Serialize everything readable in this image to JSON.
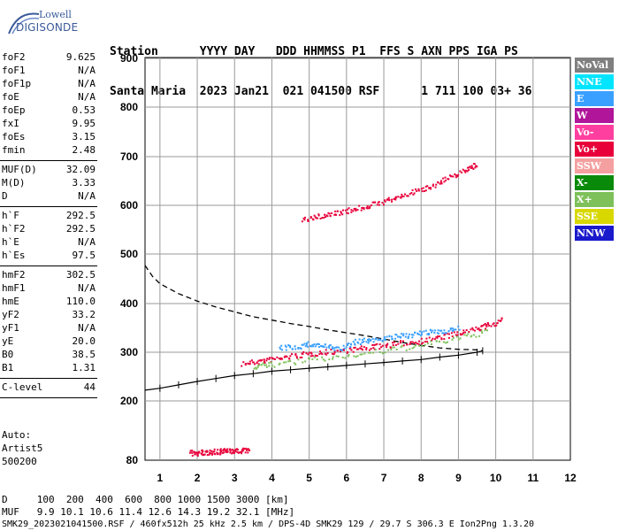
{
  "logo": {
    "line1": "Lowell",
    "line2": "DIGISONDE"
  },
  "header": {
    "line1": "Station      YYYY DAY   DDD HHMMSS P1  FFS S AXN PPS IGA PS",
    "line2": "Santa Maria  2023 Jan21  021 041500 RSF      1 711 100 03+ 36"
  },
  "params": [
    {
      "k": "foF2",
      "v": "9.625"
    },
    {
      "k": "foF1",
      "v": "N/A"
    },
    {
      "k": "foF1p",
      "v": "N/A"
    },
    {
      "k": "foE",
      "v": "N/A"
    },
    {
      "k": "foEp",
      "v": "0.53"
    },
    {
      "k": "fxI",
      "v": "9.95"
    },
    {
      "k": "foEs",
      "v": "3.15"
    },
    {
      "k": "fmin",
      "v": "2.48"
    },
    {
      "sep": true
    },
    {
      "k": "MUF(D)",
      "v": "32.09"
    },
    {
      "k": "M(D)",
      "v": "3.33"
    },
    {
      "k": "D",
      "v": "N/A"
    },
    {
      "sep": true
    },
    {
      "k": "h`F",
      "v": "292.5"
    },
    {
      "k": "h`F2",
      "v": "292.5"
    },
    {
      "k": "h`E",
      "v": "N/A"
    },
    {
      "k": "h`Es",
      "v": "97.5"
    },
    {
      "sep": true
    },
    {
      "k": "hmF2",
      "v": "302.5"
    },
    {
      "k": "hmF1",
      "v": "N/A"
    },
    {
      "k": "hmE",
      "v": "110.0"
    },
    {
      "k": "yF2",
      "v": "33.2"
    },
    {
      "k": "yF1",
      "v": "N/A"
    },
    {
      "k": "yE",
      "v": "20.0"
    },
    {
      "k": "B0",
      "v": "38.5"
    },
    {
      "k": "B1",
      "v": "1.31"
    },
    {
      "sep": true
    },
    {
      "k": "C-level",
      "v": "44"
    },
    {
      "sep": true
    }
  ],
  "auto": {
    "line1": "Auto:",
    "line2": "Artist5",
    "line3": "500200"
  },
  "legend": [
    {
      "label": "NoVal",
      "color": "#7f7f7f"
    },
    {
      "label": "NNE",
      "color": "#00e5ff"
    },
    {
      "label": "E",
      "color": "#3aa0ff"
    },
    {
      "label": "W",
      "color": "#b0159a"
    },
    {
      "label": "Vo-",
      "color": "#ff3fa0"
    },
    {
      "label": "Vo+",
      "color": "#e8003a"
    },
    {
      "label": "SSW",
      "color": "#f5a0a0"
    },
    {
      "label": "X-",
      "color": "#0a8a0a"
    },
    {
      "label": "X+",
      "color": "#7ec05a"
    },
    {
      "label": "SSE",
      "color": "#d8d800"
    },
    {
      "label": "NNW",
      "color": "#1a1acc"
    }
  ],
  "chart_data": {
    "type": "scatter",
    "xlim": [
      0.6,
      12.0
    ],
    "ylim": [
      80,
      900
    ],
    "x_ticks": [
      1,
      2,
      3,
      4,
      5,
      6,
      7,
      8,
      9,
      10,
      11,
      12
    ],
    "y_ticks": [
      80,
      200,
      300,
      400,
      500,
      600,
      700,
      800,
      900
    ],
    "grid": true,
    "series": [
      {
        "name": "F trace (virtual height)",
        "color": "#e8003a",
        "points": [
          [
            3.2,
            278
          ],
          [
            3.6,
            282
          ],
          [
            4.0,
            287
          ],
          [
            4.5,
            293
          ],
          [
            5.0,
            298
          ],
          [
            5.5,
            302
          ],
          [
            6.0,
            306
          ],
          [
            6.5,
            310
          ],
          [
            7.0,
            315
          ],
          [
            7.5,
            320
          ],
          [
            8.0,
            325
          ],
          [
            8.5,
            332
          ],
          [
            9.0,
            340
          ],
          [
            9.5,
            350
          ],
          [
            9.8,
            357
          ],
          [
            10.2,
            368
          ]
        ]
      },
      {
        "name": "F upper trace",
        "color": "#3aa0ff",
        "points": [
          [
            4.2,
            310
          ],
          [
            4.6,
            312
          ],
          [
            5.0,
            318
          ],
          [
            5.4,
            314
          ],
          [
            5.8,
            308
          ],
          [
            6.2,
            322
          ],
          [
            6.6,
            326
          ],
          [
            7.0,
            330
          ],
          [
            7.4,
            334
          ],
          [
            7.8,
            338
          ],
          [
            8.2,
            342
          ],
          [
            8.6,
            346
          ],
          [
            9.0,
            350
          ]
        ]
      },
      {
        "name": "X trace",
        "color": "#7ec05a",
        "points": [
          [
            3.5,
            272
          ],
          [
            4.0,
            276
          ],
          [
            5.0,
            285
          ],
          [
            6.0,
            294
          ],
          [
            7.0,
            304
          ],
          [
            8.0,
            316
          ],
          [
            9.0,
            330
          ],
          [
            9.8,
            345
          ]
        ]
      },
      {
        "name": "Multi-hop trace",
        "color": "#e8003a",
        "points": [
          [
            4.8,
            570
          ],
          [
            5.2,
            578
          ],
          [
            5.6,
            584
          ],
          [
            6.0,
            590
          ],
          [
            6.4,
            597
          ],
          [
            6.8,
            605
          ],
          [
            7.2,
            614
          ],
          [
            7.6,
            624
          ],
          [
            8.0,
            634
          ],
          [
            8.4,
            646
          ],
          [
            8.8,
            660
          ],
          [
            9.2,
            675
          ],
          [
            9.5,
            688
          ]
        ]
      },
      {
        "name": "Es trace",
        "color": "#e8003a",
        "points": [
          [
            1.8,
            96
          ],
          [
            2.0,
            96
          ],
          [
            2.2,
            97
          ],
          [
            2.4,
            98
          ],
          [
            2.6,
            99
          ],
          [
            2.8,
            100
          ],
          [
            3.0,
            100
          ],
          [
            3.2,
            101
          ],
          [
            3.4,
            102
          ]
        ]
      }
    ],
    "profile_dashed": [
      [
        0.6,
        477
      ],
      [
        0.8,
        455
      ],
      [
        1.0,
        440
      ],
      [
        1.5,
        420
      ],
      [
        2.0,
        405
      ],
      [
        2.5,
        393
      ],
      [
        3.0,
        383
      ],
      [
        3.5,
        373
      ],
      [
        4.0,
        366
      ],
      [
        4.5,
        359
      ],
      [
        5.0,
        353
      ],
      [
        5.5,
        346
      ],
      [
        6.0,
        340
      ],
      [
        6.5,
        334
      ],
      [
        7.0,
        327
      ],
      [
        7.5,
        320
      ],
      [
        8.0,
        314
      ],
      [
        8.5,
        309
      ],
      [
        9.0,
        306
      ],
      [
        9.5,
        305
      ],
      [
        9.65,
        303
      ]
    ],
    "profile_solid": [
      [
        0.6,
        222
      ],
      [
        1.0,
        226
      ],
      [
        1.5,
        233
      ],
      [
        2.0,
        240
      ],
      [
        2.5,
        246
      ],
      [
        3.0,
        252
      ],
      [
        3.5,
        256
      ],
      [
        4.0,
        261
      ],
      [
        4.5,
        264
      ],
      [
        5.0,
        267
      ],
      [
        5.5,
        270
      ],
      [
        6.0,
        273
      ],
      [
        6.5,
        276
      ],
      [
        7.0,
        279
      ],
      [
        7.5,
        282
      ],
      [
        8.0,
        285
      ],
      [
        8.5,
        290
      ],
      [
        9.0,
        294
      ],
      [
        9.5,
        300
      ],
      [
        9.65,
        303
      ]
    ]
  },
  "footer": {
    "line1": "D     100  200  400  600  800 1000 1500 3000 [km]",
    "line2": "MUF   9.9 10.1 10.6 11.4 12.6 14.3 19.2 32.1 [MHz]",
    "line3": "SMK29_2023021041500.RSF / 460fx512h 25 kHz 2.5 km / DPS-4D SMK29 129 / 29.7 S 306.3 E Ion2Png 1.3.20"
  }
}
